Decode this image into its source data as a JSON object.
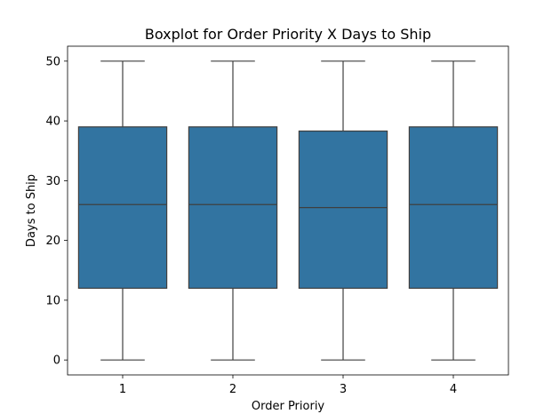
{
  "chart_data": {
    "type": "boxplot",
    "title": "Boxplot for Order Priority X Days to Ship",
    "xlabel": "Order Prioriy",
    "ylabel": "Days to Ship",
    "categories": [
      "1",
      "2",
      "3",
      "4"
    ],
    "boxes": [
      {
        "category": "1",
        "whisker_low": 0,
        "q1": 12,
        "median": 26,
        "q3": 39,
        "whisker_high": 50
      },
      {
        "category": "2",
        "whisker_low": 0,
        "q1": 12,
        "median": 26,
        "q3": 39,
        "whisker_high": 50
      },
      {
        "category": "3",
        "whisker_low": 0,
        "q1": 12,
        "median": 25.5,
        "q3": 38.3,
        "whisker_high": 50
      },
      {
        "category": "4",
        "whisker_low": 0,
        "q1": 12,
        "median": 26,
        "q3": 39,
        "whisker_high": 50
      }
    ],
    "yticks": [
      0,
      10,
      20,
      30,
      40,
      50
    ],
    "ylim": [
      -2.5,
      52.5
    ],
    "grid": false,
    "box_color": "#3274a1",
    "line_color": "#3f3f3f"
  }
}
